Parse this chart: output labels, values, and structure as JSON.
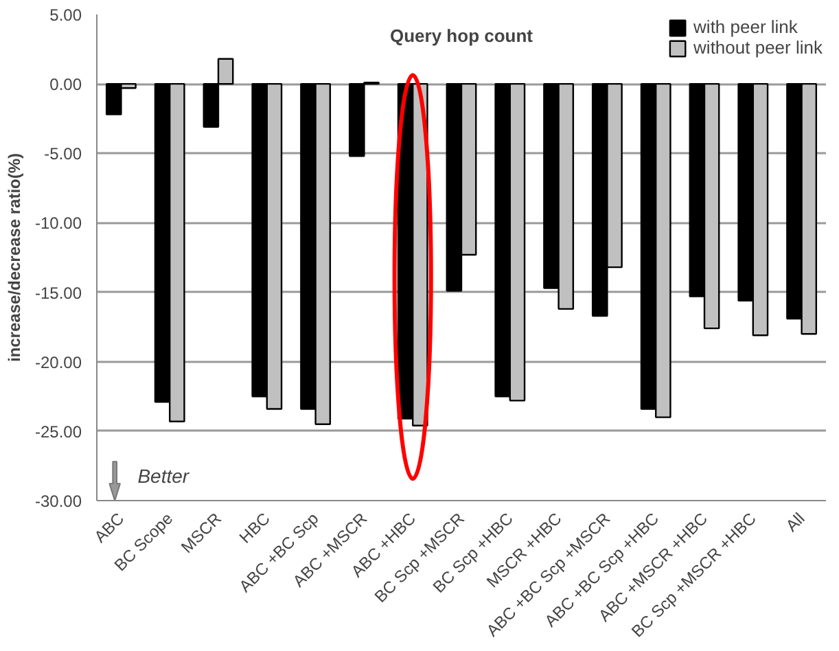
{
  "chart_data": {
    "type": "bar",
    "title": "Query hop count",
    "ylabel": "increase/decrease ratio(%)",
    "categories": [
      "ABC",
      "BC Scope",
      "MSCR",
      "HBC",
      "ABC +BC Scp",
      "ABC +MSCR",
      "ABC +HBC",
      "BC Scp +MSCR",
      "BC Scp +HBC",
      "MSCR +HBC",
      "ABC +BC Scp +MSCR",
      "ABC +BC Scp +HBC",
      "ABC +MSCR +HBC",
      "BC Scp +MSCR +HBC",
      "All"
    ],
    "series": [
      {
        "name": "with peer link",
        "color": "#000000",
        "values": [
          -2.2,
          -22.9,
          -3.1,
          -22.5,
          -23.4,
          -5.2,
          -24.1,
          -14.9,
          -22.5,
          -14.7,
          -16.7,
          -23.4,
          -15.3,
          -15.6,
          -16.9
        ]
      },
      {
        "name": "without peer link",
        "color": "#c0c0c0",
        "values": [
          -0.3,
          -24.3,
          1.8,
          -23.4,
          -24.5,
          0.1,
          -24.6,
          -12.3,
          -22.8,
          -16.2,
          -13.2,
          -24.0,
          -17.6,
          -18.1,
          -18.0
        ]
      }
    ],
    "ylim": [
      -30,
      5
    ],
    "yticks": [
      {
        "value": -30,
        "label": "-30.00"
      },
      {
        "value": -25,
        "label": "-25.00"
      },
      {
        "value": -20,
        "label": "-20.00"
      },
      {
        "value": -15,
        "label": "-15.00"
      },
      {
        "value": -10,
        "label": "-10.00"
      },
      {
        "value": -5,
        "label": "-5.00"
      },
      {
        "value": 0,
        "label": "0.00"
      },
      {
        "value": 5,
        "label": "5.00"
      }
    ],
    "grid": "y",
    "legend": "top right",
    "annotations": [
      "Better"
    ]
  }
}
